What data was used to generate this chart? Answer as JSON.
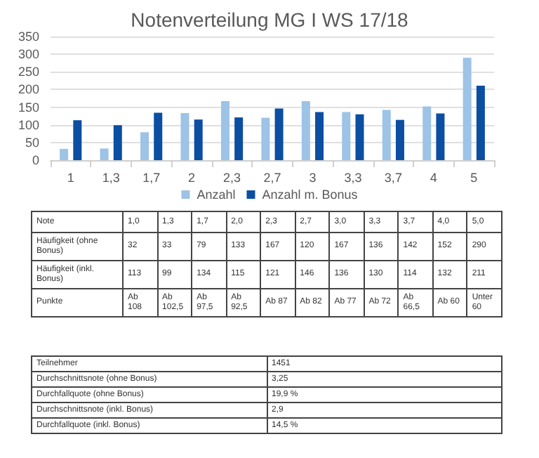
{
  "chart_data": [
    {
      "type": "bar",
      "title": "Notenverteilung MG I WS 17/18",
      "categories": [
        "1",
        "1,3",
        "1,7",
        "2",
        "2,3",
        "2,7",
        "3",
        "3,3",
        "3,7",
        "4",
        "5"
      ],
      "series": [
        {
          "name": "Anzahl",
          "color": "#9dc3e6",
          "values": [
            32,
            33,
            79,
            133,
            167,
            120,
            167,
            136,
            142,
            152,
            290
          ]
        },
        {
          "name": "Anzahl m. Bonus",
          "color": "#0b4ea2",
          "values": [
            113,
            99,
            134,
            115,
            121,
            146,
            136,
            130,
            114,
            132,
            211
          ]
        }
      ],
      "ylim": [
        0,
        350
      ],
      "yticks": [
        0,
        50,
        100,
        150,
        200,
        250,
        300,
        350
      ],
      "grid": "y",
      "legend": "bottom"
    },
    {
      "type": "other",
      "categories": [
        "Note",
        "1,0",
        "1,3",
        "1,7",
        "2,0",
        "2,3",
        "2,7",
        "3,0",
        "3,3",
        "3,7",
        "4,0",
        "5,0"
      ],
      "annotations": [
        "Häufigkeit (ohne Bonus)",
        "32",
        "33",
        "79",
        "133",
        "167",
        "120",
        "167",
        "136",
        "142",
        "152",
        "290",
        "Häufigkeit (inkl. Bonus)",
        "113",
        "99",
        "134",
        "115",
        "121",
        "146",
        "136",
        "130",
        "114",
        "132",
        "211",
        "Punkte",
        "Ab 108",
        "Ab 102,5",
        "Ab 97,5",
        "Ab 92,5",
        "Ab 87",
        "Ab 82",
        "Ab 77",
        "Ab 72",
        "Ab 66,5",
        "Ab 60",
        "Unter 60"
      ]
    },
    {
      "type": "other",
      "categories": [
        "Teilnehmer",
        "1451"
      ],
      "annotations": [
        "Durchschnittsnote (ohne Bonus)",
        "3,25",
        "Durchfallquote (ohne Bonus)",
        "19,9 %",
        "Durchschnittsnote (inkl. Bonus)",
        "2,9",
        "Durchfallquote (inkl. Bonus)",
        "14,5 %"
      ]
    }
  ]
}
